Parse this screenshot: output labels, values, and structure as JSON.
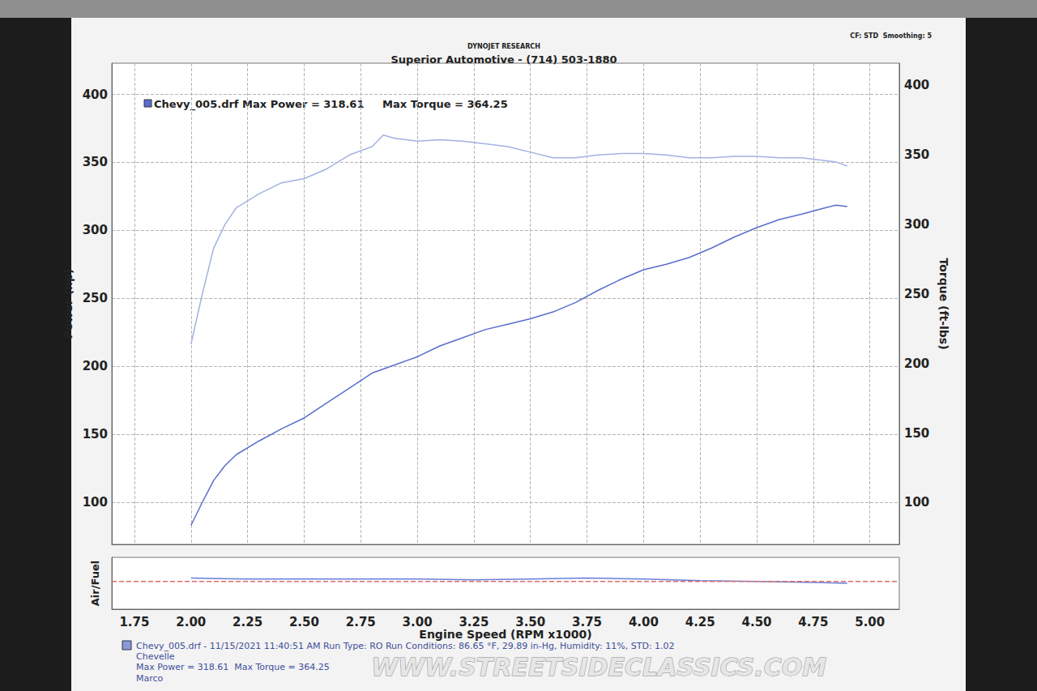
{
  "header": {
    "source": "DYNOJET RESEARCH",
    "title": "Superior Automotive - (714) 503-1880",
    "settings": "CF: STD  Smoothing: 5"
  },
  "chart_data": [
    {
      "type": "line",
      "annotations": [
        "Chevy_005.drf Max Power = 318.61     Max Torque = 364.25"
      ],
      "y_label": "Power (hp)",
      "y2_label": "Torque (ft-lbs)",
      "x": [
        2.0,
        2.05,
        2.1,
        2.15,
        2.2,
        2.3,
        2.4,
        2.5,
        2.6,
        2.7,
        2.8,
        2.85,
        2.9,
        3.0,
        3.1,
        3.2,
        3.3,
        3.4,
        3.5,
        3.6,
        3.7,
        3.8,
        3.9,
        4.0,
        4.1,
        4.2,
        4.3,
        4.4,
        4.5,
        4.6,
        4.7,
        4.8,
        4.85,
        4.9
      ],
      "series": [
        {
          "color": "#5a6dcc",
          "values": [
            83,
            100,
            116,
            127,
            135,
            145,
            154,
            162,
            173,
            184,
            195,
            198,
            201,
            207,
            215,
            221,
            227,
            231,
            235,
            240,
            247,
            256,
            264,
            271,
            275,
            280,
            287,
            295,
            302,
            308,
            312,
            316.5,
            318.61,
            317.5
          ]
        },
        {
          "color": "#a3b2e2",
          "axis": "y2",
          "values": [
            214,
            250,
            283,
            300,
            312,
            322,
            330,
            333,
            340,
            350,
            356,
            364.25,
            362,
            360,
            361,
            360,
            358,
            356,
            352,
            348,
            348,
            350,
            351,
            351,
            350,
            348,
            348,
            349,
            349,
            348,
            348,
            346,
            345,
            342
          ]
        }
      ],
      "xlim": [
        1.65,
        5.13
      ],
      "xticks": [
        1.75,
        2,
        2.25,
        2.5,
        2.75,
        3,
        3.25,
        3.5,
        3.75,
        4,
        4.25,
        4.5,
        4.75,
        5
      ],
      "ylim": [
        69,
        423
      ],
      "yticks": [
        100,
        150,
        200,
        250,
        300,
        350,
        400
      ],
      "y2lim": [
        70,
        416
      ],
      "y2ticks": [
        100,
        150,
        200,
        250,
        300,
        350,
        400
      ],
      "grid": true,
      "tick_labels": "y"
    },
    {
      "type": "line",
      "x_label": "Engine Speed (RPM x1000)",
      "y_label": "Air/Fuel",
      "series": [
        {
          "color": "#6a7fd8",
          "x": [
            2.0,
            2.25,
            2.5,
            2.75,
            3.0,
            3.25,
            3.5,
            3.75,
            4.0,
            4.25,
            4.5,
            4.75,
            4.9
          ],
          "values": [
            13.6,
            13.5,
            13.5,
            13.5,
            13.5,
            13.4,
            13.5,
            13.6,
            13.5,
            13.3,
            13.2,
            13.1,
            13.0
          ]
        },
        {
          "color": "#e06a6a",
          "line_style": "dashed",
          "x": [
            1.65,
            5.13
          ],
          "values": [
            13.2,
            13.2
          ]
        }
      ],
      "xlim": [
        1.65,
        5.13
      ],
      "xticks": [
        {
          "value": 1.75,
          "label": "1.75"
        },
        {
          "value": 2,
          "label": "2.00"
        },
        {
          "value": 2.25,
          "label": "2.25"
        },
        {
          "value": 2.5,
          "label": "2.50"
        },
        {
          "value": 2.75,
          "label": "2.75"
        },
        {
          "value": 3,
          "label": "3.00"
        },
        {
          "value": 3.25,
          "label": "3.25"
        },
        {
          "value": 3.5,
          "label": "3.50"
        },
        {
          "value": 3.75,
          "label": "3.75"
        },
        {
          "value": 4,
          "label": "4.00"
        },
        {
          "value": 4.25,
          "label": "4.25"
        },
        {
          "value": 4.5,
          "label": "4.50"
        },
        {
          "value": 4.75,
          "label": "4.75"
        },
        {
          "value": 5,
          "label": "5.00"
        }
      ],
      "ylim": [
        10,
        16
      ],
      "grid": false,
      "tick_labels": "x"
    }
  ],
  "footer": {
    "lines": [
      "Chevy_005.drf - 11/15/2021 11:40:51 AM Run Type: RO Run Conditions: 86.65 °F, 29.89 in-Hg, Humidity: 11%, STD: 1.02",
      "Chevelle",
      "Max Power = 318.61  Max Torque = 364.25",
      "Marco"
    ]
  },
  "watermark": "WWW.STREETSIDECLASSICS.COM"
}
